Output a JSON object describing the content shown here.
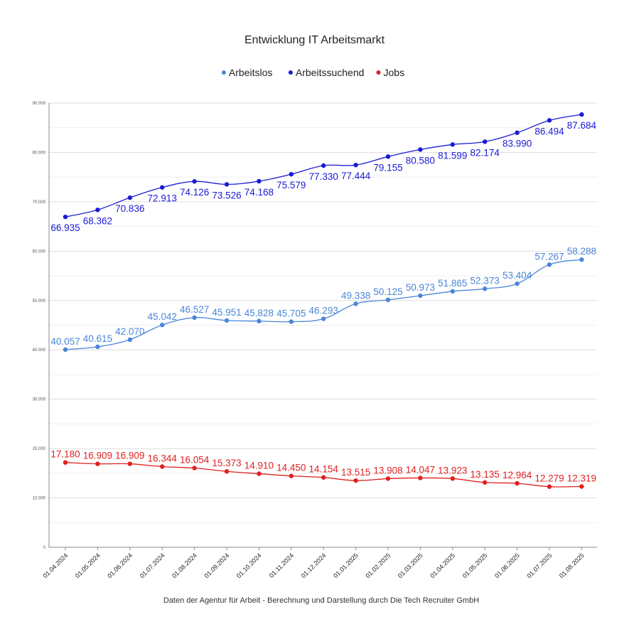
{
  "chart_data": {
    "type": "line",
    "title": "Entwicklung IT Arbeitsmarkt",
    "footer": "Daten der Agentur für Arbeit - Berechnung und Darstellung durch Die Tech Recruiter GmbH",
    "legend_position": "top-center",
    "grid": true,
    "xlabel": "",
    "ylabel": "",
    "ylim": [
      0,
      90000
    ],
    "yticks": [
      "0",
      "10.000",
      "20.000",
      "30.000",
      "40.000",
      "50.000",
      "60.000",
      "70.000",
      "80.000",
      "90.000"
    ],
    "categories": [
      "01.04.2024",
      "01.05.2024",
      "01.06.2024",
      "01.07.2024",
      "01.08.2024",
      "01.09.2024",
      "01.10.2024",
      "01.11.2024",
      "01.12.2024",
      "01.01.2025",
      "01.02.2025",
      "01.03.2025",
      "01.04.2025",
      "01.05.2025",
      "01.06.2025",
      "01.07.2025",
      "01.08.2025"
    ],
    "series": [
      {
        "name": "Arbeitslos",
        "color": "#4a86d8",
        "values": [
          40057,
          40615,
          42070,
          45042,
          46527,
          45951,
          45828,
          45705,
          46293,
          49338,
          50125,
          50973,
          51865,
          52373,
          53404,
          57267,
          58288
        ],
        "labels": [
          "40.057",
          "40.615",
          "42.070",
          "45.042",
          "46.527",
          "45.951",
          "45.828",
          "45.705",
          "46.293",
          "49.338",
          "50.125",
          "50.973",
          "51.865",
          "52.373",
          "53.404",
          "57.267",
          "58.288"
        ],
        "label_position": "above"
      },
      {
        "name": "Arbeitssuchend",
        "color": "#1a1ad6",
        "values": [
          66935,
          68362,
          70836,
          72913,
          74126,
          73526,
          74168,
          75579,
          77330,
          77444,
          79155,
          80580,
          81599,
          82174,
          83990,
          86494,
          87684
        ],
        "labels": [
          "66.935",
          "68.362",
          "70.836",
          "72.913",
          "74.126",
          "73.526",
          "74.168",
          "75.579",
          "77.330",
          "77.444",
          "79.155",
          "80.580",
          "81.599",
          "82.174",
          "83.990",
          "86.494",
          "87.684"
        ],
        "label_position": "below"
      },
      {
        "name": "Jobs",
        "color": "#e02020",
        "values": [
          17180,
          16909,
          16909,
          16344,
          16054,
          15373,
          14910,
          14450,
          14154,
          13515,
          13908,
          14047,
          13923,
          13135,
          12964,
          12279,
          12319
        ],
        "labels": [
          "17.180",
          "16.909",
          "16.909",
          "16.344",
          "16.054",
          "15.373",
          "14.910",
          "14.450",
          "14.154",
          "13.515",
          "13.908",
          "14.047",
          "13.923",
          "13.135",
          "12.964",
          "12.279",
          "12.319"
        ],
        "label_position": "above"
      }
    ]
  }
}
